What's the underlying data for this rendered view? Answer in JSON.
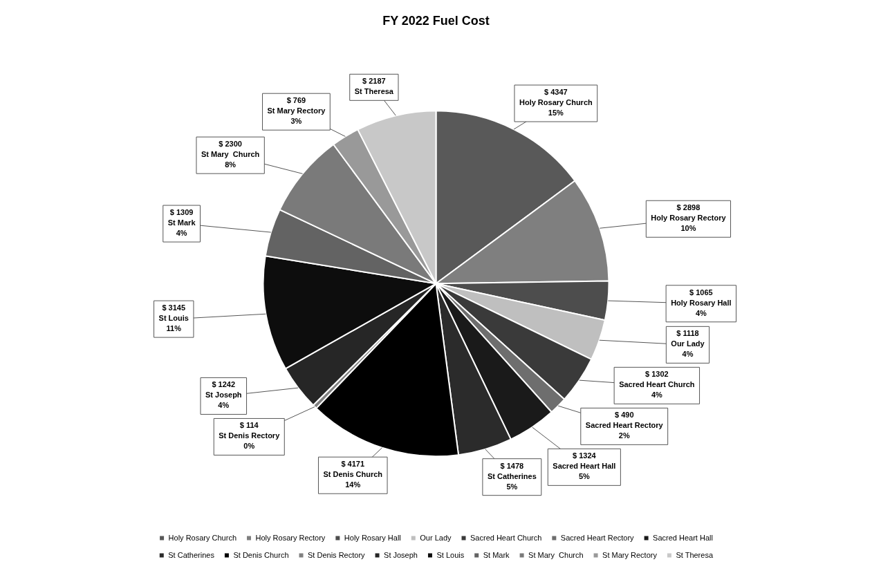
{
  "chart_data": {
    "type": "pie",
    "title": "FY 2022 Fuel Cost",
    "categories": [
      "Holy Rosary Church",
      "Holy Rosary Rectory",
      "Holy Rosary Hall",
      "Our Lady",
      "Sacred Heart Church",
      "Sacred Heart Rectory",
      "Sacred Heart Hall",
      "St Catherines",
      "St Denis Church",
      "St Denis Rectory",
      "St Joseph",
      "St Louis",
      "St Mark",
      "St Mary  Church",
      "St Mary Rectory",
      "St Theresa"
    ],
    "values": [
      4347,
      2898,
      1065,
      1118,
      1302,
      490,
      1324,
      1478,
      4171,
      114,
      1242,
      3145,
      1309,
      2300,
      769,
      2187
    ],
    "colors": [
      "#595959",
      "#7f7f7f",
      "#4d4d4d",
      "#bfbfbf",
      "#3a3a3a",
      "#6e6e6e",
      "#1a1a1a",
      "#2b2b2b",
      "#000000",
      "#808080",
      "#262626",
      "#0d0d0d",
      "#636363",
      "#7a7a7a",
      "#999999",
      "#c8c8c8"
    ],
    "value_labels": [
      "$ 4347\n15%",
      "$ 2898\n10%",
      "$ 1065\n4%",
      "$ 1118\n4%",
      "$ 1302\n4%",
      "$ 490\n2%",
      "$ 1324\n5%",
      "$ 1478\n5%",
      "$ 4171\n14%",
      "$ 114\n0%",
      "$ 1242\n4%",
      "$ 3145\n11%",
      "$ 1309\n4%",
      "$ 2300\n8%",
      "$ 769\n3%",
      "$ 2187"
    ],
    "legend": "bottom"
  }
}
